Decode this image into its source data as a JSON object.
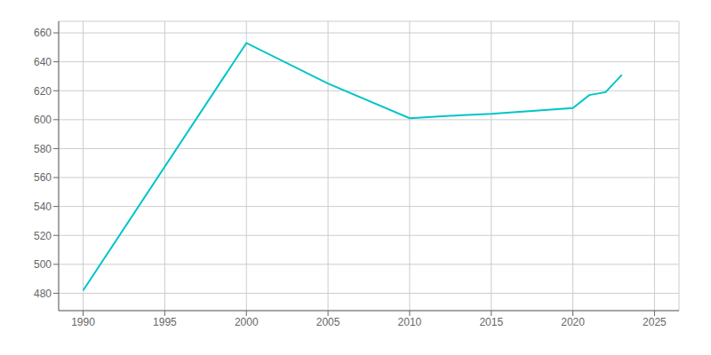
{
  "chart_data": {
    "type": "line",
    "x": [
      1990,
      2000,
      2005,
      2010,
      2013,
      2015,
      2020,
      2021,
      2022,
      2023
    ],
    "values": [
      482,
      653,
      625,
      601,
      603,
      604,
      608,
      617,
      619,
      631
    ],
    "color": "#00C5C8",
    "xlim": [
      1988.5,
      2026.5
    ],
    "ylim": [
      468,
      668
    ],
    "xticks": [
      1990,
      1995,
      2000,
      2005,
      2010,
      2015,
      2020,
      2025
    ],
    "yticks": [
      480,
      500,
      520,
      540,
      560,
      580,
      600,
      620,
      640,
      660
    ],
    "grid": true
  }
}
